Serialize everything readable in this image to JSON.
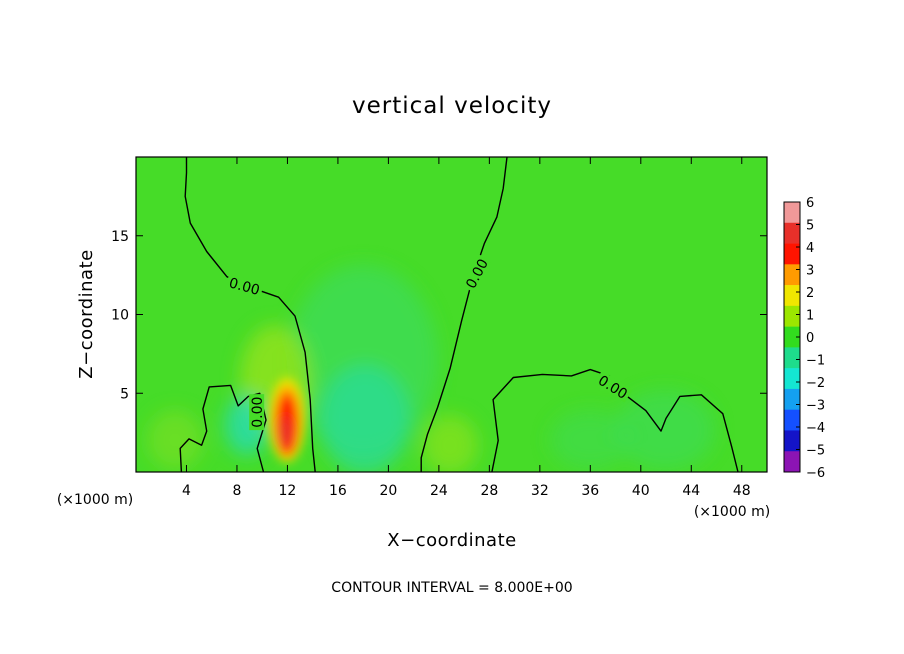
{
  "chart_data": {
    "type": "heatmap",
    "title": "vertical velocity",
    "xlabel": "X−coordinate",
    "ylabel": "Z−coordinate",
    "x_unit_left": "(×1000 m)",
    "x_unit_right": "(×1000 m)",
    "footer": "CONTOUR INTERVAL = 8.000E+00",
    "xlim": [
      0,
      50
    ],
    "ylim": [
      0,
      20
    ],
    "x_ticks": [
      4,
      8,
      12,
      16,
      20,
      24,
      28,
      32,
      36,
      40,
      44,
      48
    ],
    "y_ticks": [
      5,
      10,
      15
    ],
    "colorbar": {
      "levels": [
        6,
        5,
        4,
        3,
        2,
        1,
        0,
        -1,
        -2,
        -3,
        -4,
        -5,
        -6
      ],
      "labels": [
        "6",
        "5",
        "4",
        "3",
        "2",
        "1",
        "0",
        "−1",
        "−2",
        "−3",
        "−4",
        "−5",
        "−6"
      ],
      "colors": [
        "#f19999",
        "#e8302a",
        "#ff1400",
        "#ff9b00",
        "#f0e600",
        "#9ce600",
        "#32dc1e",
        "#1edc8c",
        "#14e6d2",
        "#14a0f0",
        "#1450ff",
        "#1414c8",
        "#8c14b4"
      ]
    },
    "background_color": "#46dc28",
    "contour_label": "0.00",
    "zero_contours": [
      {
        "label_at": [
          8.6,
          11.8
        ],
        "label_angle": 15,
        "points": [
          [
            4.0,
            20
          ],
          [
            4.0,
            19
          ],
          [
            3.9,
            17.5
          ],
          [
            4.3,
            15.8
          ],
          [
            5.6,
            14.0
          ],
          [
            7.2,
            12.4
          ],
          [
            9.5,
            11.6
          ],
          [
            11.3,
            11.1
          ],
          [
            12.6,
            9.9
          ],
          [
            13.4,
            7.6
          ],
          [
            13.8,
            4.6
          ],
          [
            14.0,
            1.5
          ],
          [
            14.2,
            0
          ]
        ]
      },
      {
        "label_at": [
          27,
          12.6
        ],
        "label_angle": -62,
        "points": [
          [
            29.4,
            20
          ],
          [
            29.1,
            18.0
          ],
          [
            28.6,
            16.2
          ],
          [
            27.6,
            14.5
          ],
          [
            26.7,
            12.4
          ],
          [
            25.8,
            9.6
          ],
          [
            24.9,
            6.6
          ],
          [
            23.9,
            4.1
          ],
          [
            23.1,
            2.4
          ],
          [
            22.6,
            0.9
          ],
          [
            22.6,
            0
          ]
        ]
      },
      {
        "label_at": [
          9.6,
          3.8
        ],
        "label_angle": -90,
        "points": [
          [
            3.6,
            0
          ],
          [
            3.5,
            1.5
          ],
          [
            4.2,
            2.1
          ],
          [
            5.2,
            1.7
          ],
          [
            5.6,
            2.6
          ],
          [
            5.3,
            4.0
          ],
          [
            5.8,
            5.4
          ],
          [
            7.5,
            5.5
          ],
          [
            8.1,
            4.2
          ],
          [
            8.9,
            4.8
          ],
          [
            9.8,
            5.0
          ],
          [
            10.3,
            3.3
          ],
          [
            9.6,
            1.5
          ],
          [
            10.1,
            0
          ]
        ]
      },
      {
        "label_at": [
          37.8,
          5.4
        ],
        "label_angle": 32,
        "points": [
          [
            28.2,
            0
          ],
          [
            28.7,
            2.0
          ],
          [
            28.3,
            4.6
          ],
          [
            29.9,
            6.0
          ],
          [
            32.2,
            6.2
          ],
          [
            34.5,
            6.1
          ],
          [
            36.0,
            6.5
          ],
          [
            37.5,
            6.1
          ],
          [
            38.6,
            5.0
          ],
          [
            40.4,
            3.9
          ],
          [
            41.6,
            2.6
          ],
          [
            42.0,
            3.4
          ],
          [
            43.1,
            4.8
          ],
          [
            44.8,
            4.9
          ],
          [
            46.5,
            3.7
          ],
          [
            47.2,
            1.6
          ],
          [
            47.7,
            0
          ]
        ]
      }
    ]
  }
}
